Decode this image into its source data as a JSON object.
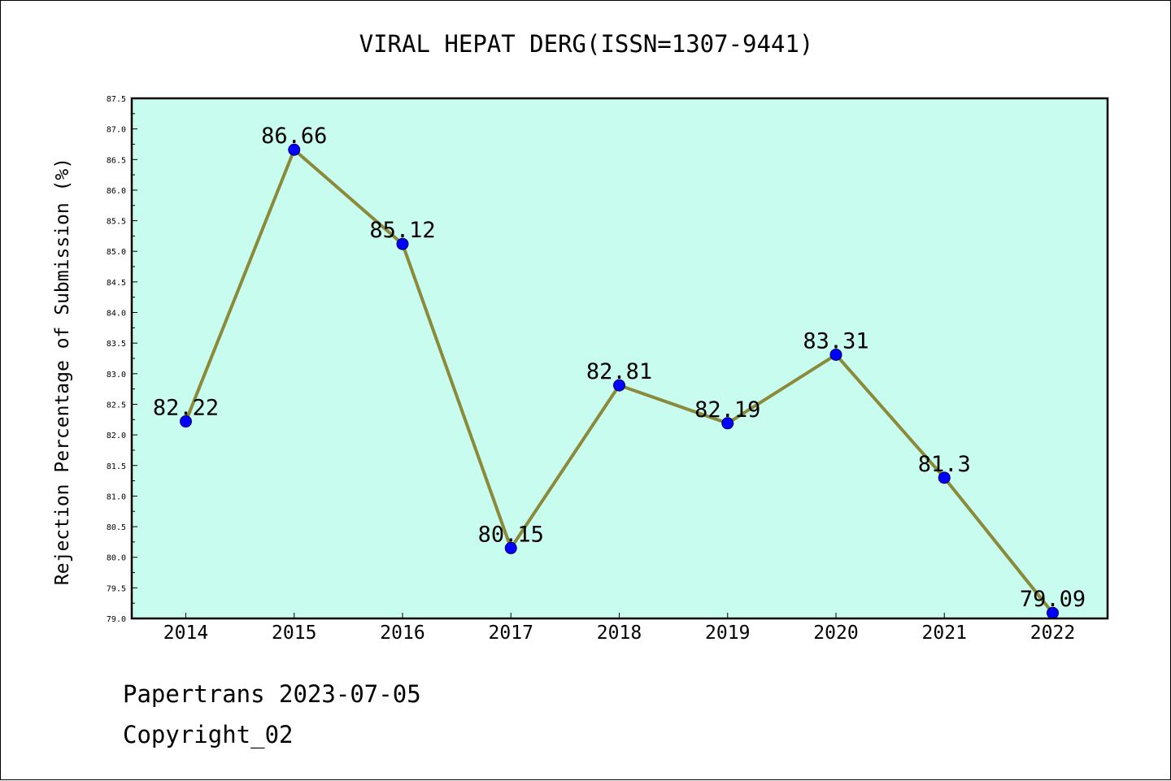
{
  "chart_data": {
    "type": "line",
    "title": "VIRAL HEPAT DERG(ISSN=1307-9441)",
    "xlabel": "",
    "ylabel": "Rejection Percentage of Submission (%)",
    "categories": [
      "2014",
      "2015",
      "2016",
      "2017",
      "2018",
      "2019",
      "2020",
      "2021",
      "2022"
    ],
    "series": [
      {
        "values": [
          82.22,
          86.66,
          85.12,
          80.15,
          82.81,
          82.19,
          83.31,
          81.3,
          79.09
        ],
        "labels": [
          "82.22",
          "86.66",
          "85.12",
          "80.15",
          "82.81",
          "82.19",
          "83.31",
          "81.3",
          "79.09"
        ],
        "line_color": "#8b8a3a",
        "marker_color": "#0000ff"
      }
    ],
    "ylim": [
      79.0,
      87.5
    ],
    "yticks": [
      "79.0",
      "79.5",
      "80.0",
      "80.5",
      "81.0",
      "81.5",
      "82.0",
      "82.5",
      "83.0",
      "83.5",
      "84.0",
      "84.5",
      "85.0",
      "85.5",
      "86.0",
      "86.5",
      "87.0",
      "87.5"
    ],
    "grid": false,
    "plot_background": "#c8fcee"
  },
  "footer": {
    "line1": "Papertrans 2023-07-05",
    "line2": "Copyright_02"
  }
}
